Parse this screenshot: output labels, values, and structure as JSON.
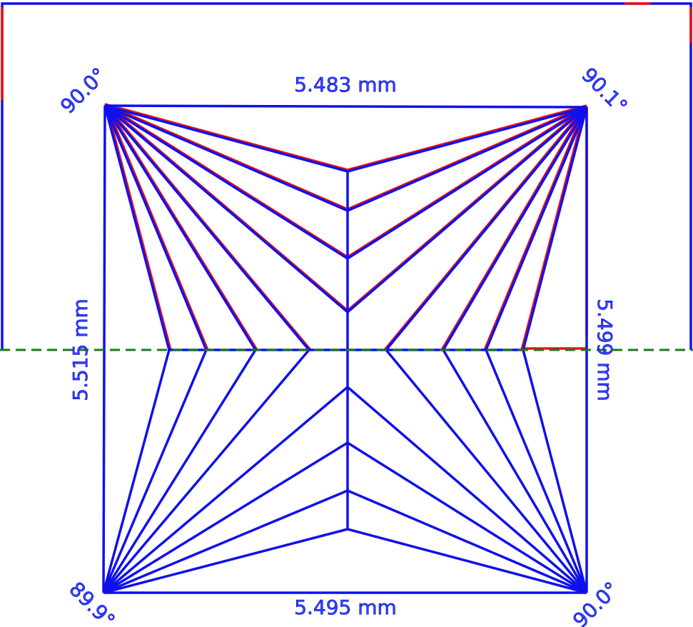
{
  "labels": {
    "top_width": "5.483 mm",
    "bottom_width": "5.495 mm",
    "left_height": "5.515 mm",
    "right_height": "5.499 mm",
    "angle_top_left": "90.0°",
    "angle_top_right": "90.1°",
    "angle_bottom_left": "89.9°",
    "angle_bottom_right": "90.0°"
  }
}
